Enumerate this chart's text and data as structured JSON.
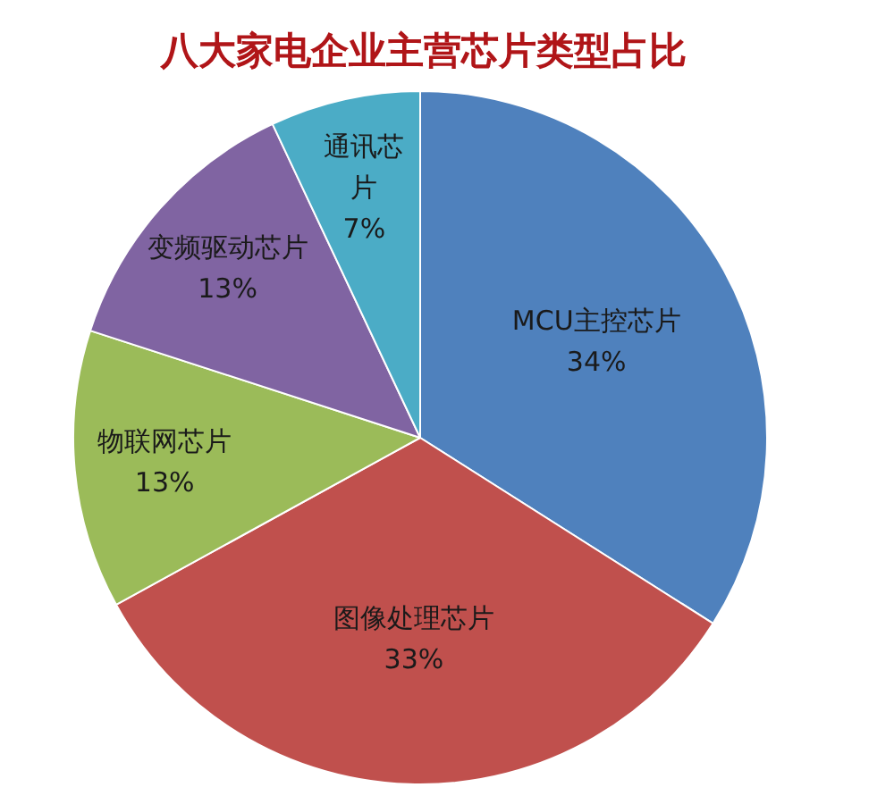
{
  "chart_data": {
    "type": "pie",
    "title": "八大家电企业主营芯片类型占比",
    "categories": [
      "MCU主控芯片",
      "图像处理芯片",
      "物联网芯片",
      "变频驱动芯片",
      "通讯芯片"
    ],
    "values": [
      34,
      33,
      13,
      13,
      7
    ],
    "colors": [
      "#4f81bd",
      "#c0504d",
      "#9bbb59",
      "#8064a2",
      "#4bacc6"
    ],
    "value_labels": [
      "34%",
      "33%",
      "13%",
      "13%",
      "7%"
    ]
  }
}
